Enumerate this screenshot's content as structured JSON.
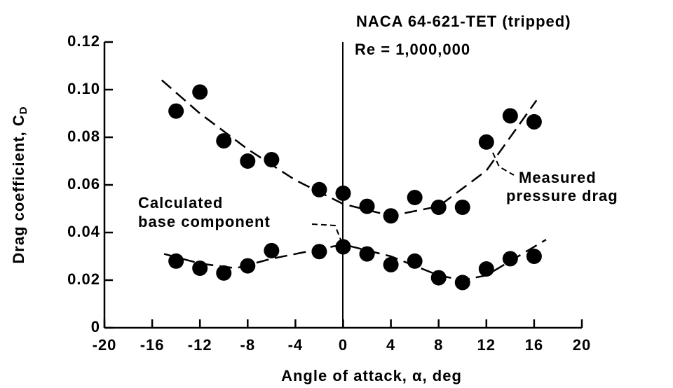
{
  "chart_data": {
    "type": "scatter",
    "title": "NACA 64-621-TET (tripped)",
    "subtitle": "Re = 1,000,000",
    "xlabel": "Angle of attack, α, deg",
    "ylabel": [
      "Drag coefficient, C",
      "D"
    ],
    "xlim": [
      -20,
      20
    ],
    "xticks": [
      -20,
      -16,
      -12,
      -8,
      -4,
      0,
      4,
      8,
      12,
      16,
      20
    ],
    "ylim": [
      0,
      0.12
    ],
    "yticks": [
      0,
      0.02,
      0.04,
      0.06,
      {
        "value": 0.1,
        "label": "0.10"
      },
      0.08,
      0.12
    ],
    "color": "#000000",
    "series": [
      {
        "kind": "points",
        "x": [
          -14,
          -12,
          -10,
          -8,
          -6,
          -2,
          0,
          2,
          4,
          6,
          8,
          10,
          12,
          14,
          16
        ],
        "values": [
          0.091,
          0.099,
          0.0785,
          0.07,
          0.0706,
          0.058,
          0.0565,
          0.051,
          0.047,
          0.0547,
          0.0506,
          0.0506,
          0.078,
          0.089,
          0.0865
        ]
      },
      {
        "kind": "points",
        "x": [
          -14,
          -12,
          -10,
          -8,
          -6,
          -2,
          0,
          2,
          4,
          6,
          8,
          10,
          12,
          14,
          16
        ],
        "values": [
          0.028,
          0.025,
          0.023,
          0.026,
          0.0324,
          0.032,
          0.034,
          0.031,
          0.0265,
          0.028,
          0.021,
          0.019,
          0.0247,
          0.029,
          0.03
        ]
      },
      {
        "kind": "curve",
        "x": [
          -15.2,
          -12,
          -8,
          -4,
          0,
          4,
          8,
          12,
          16.2
        ],
        "values": [
          0.104,
          0.09,
          0.075,
          0.062,
          0.052,
          0.047,
          0.051,
          0.066,
          0.0955
        ]
      },
      {
        "kind": "curve",
        "x": [
          -15,
          -12,
          -9,
          -6,
          -2,
          0,
          4,
          8,
          10,
          12,
          16,
          17
        ],
        "values": [
          0.031,
          0.027,
          0.025,
          0.029,
          0.033,
          0.035,
          0.03,
          0.022,
          0.02,
          0.022,
          0.034,
          0.037
        ]
      }
    ],
    "annotations": [
      {
        "lines": [
          "Measured",
          "pressure drag"
        ]
      },
      {
        "lines": [
          "Calculated",
          "base component"
        ]
      }
    ]
  }
}
